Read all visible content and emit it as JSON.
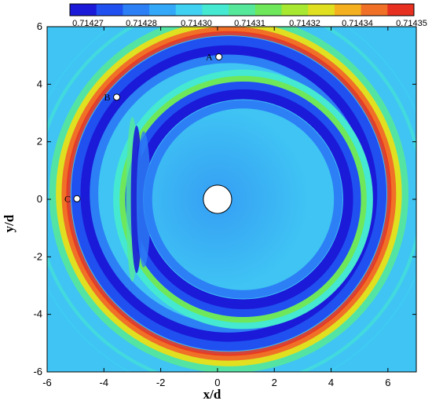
{
  "chart_data": {
    "type": "heatmap",
    "title": "",
    "xlabel": "x/d",
    "ylabel": "y/d",
    "xlim": [
      -6,
      7
    ],
    "ylim": [
      -6,
      6
    ],
    "x_ticks": [
      -6,
      -4,
      -2,
      0,
      2,
      4,
      6
    ],
    "y_ticks": [
      -6,
      -4,
      -2,
      0,
      2,
      4,
      6
    ],
    "colorbar": {
      "position": "top",
      "min": 0.714265,
      "max": 0.714355,
      "tick_labels": [
        "0.71427",
        "0.71428",
        "0.71430",
        "0.71431",
        "0.71432",
        "0.71434",
        "0.71435"
      ],
      "colors": [
        "#1a1ad8",
        "#2050f0",
        "#2d7ff5",
        "#33a8f8",
        "#3fd0f2",
        "#45e8d0",
        "#55e89a",
        "#6ee85a",
        "#a8e830",
        "#e0e020",
        "#f5b020",
        "#f07028",
        "#e83020"
      ]
    },
    "field": {
      "background_color": "#3fc4f4",
      "body": {
        "shape": "circle",
        "center": [
          0,
          0
        ],
        "diameter": 1,
        "color": "#ffffff"
      },
      "shock_fronts": [
        {
          "name": "primary",
          "center": [
            0.4,
            0.2
          ],
          "radius": 5.6,
          "peak_color": "#e83020"
        },
        {
          "name": "secondary",
          "center": [
            0.9,
            0.0
          ],
          "radius": 4.1,
          "peak_color": "#a8e830"
        }
      ]
    },
    "points": [
      {
        "label": "A",
        "x": 0.05,
        "y": 4.95
      },
      {
        "label": "B",
        "x": -3.55,
        "y": 3.55
      },
      {
        "label": "C",
        "x": -4.95,
        "y": 0.02
      }
    ]
  }
}
